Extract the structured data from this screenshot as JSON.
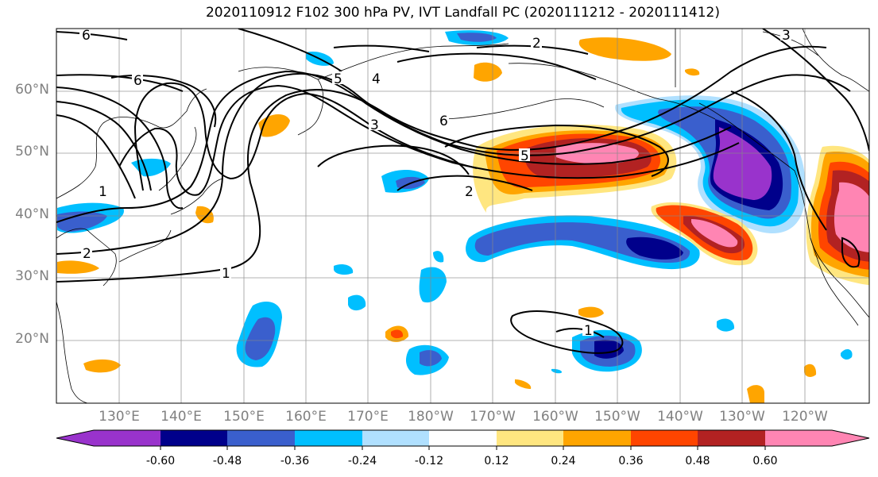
{
  "title": "2020110912 F102 300 hPa PV, IVT Landfall PC (2020111212 - 2020111412)",
  "lat_labels": [
    "60°N",
    "50°N",
    "40°N",
    "30°N",
    "20°N"
  ],
  "lon_labels": [
    "130°E",
    "140°E",
    "150°E",
    "160°E",
    "170°E",
    "180°W",
    "170°W",
    "160°W",
    "150°W",
    "140°W",
    "130°W",
    "120°W"
  ],
  "contour_labels": [
    "6",
    "6",
    "2",
    "3",
    "4",
    "5",
    "3",
    "6",
    "5",
    "2",
    "2",
    "1",
    "1",
    "1"
  ],
  "colorbar": {
    "ticks": [
      "-0.60",
      "-0.48",
      "-0.36",
      "-0.24",
      "-0.12",
      "0.12",
      "0.24",
      "0.36",
      "0.48",
      "0.60"
    ],
    "colors": [
      "#9933cc",
      "#00008b",
      "#3a5fcd",
      "#00bfff",
      "#b0e0ff",
      "#ffffff",
      "#ffe680",
      "#ffa500",
      "#ff4500",
      "#b22222",
      "#ff85b3"
    ]
  }
}
